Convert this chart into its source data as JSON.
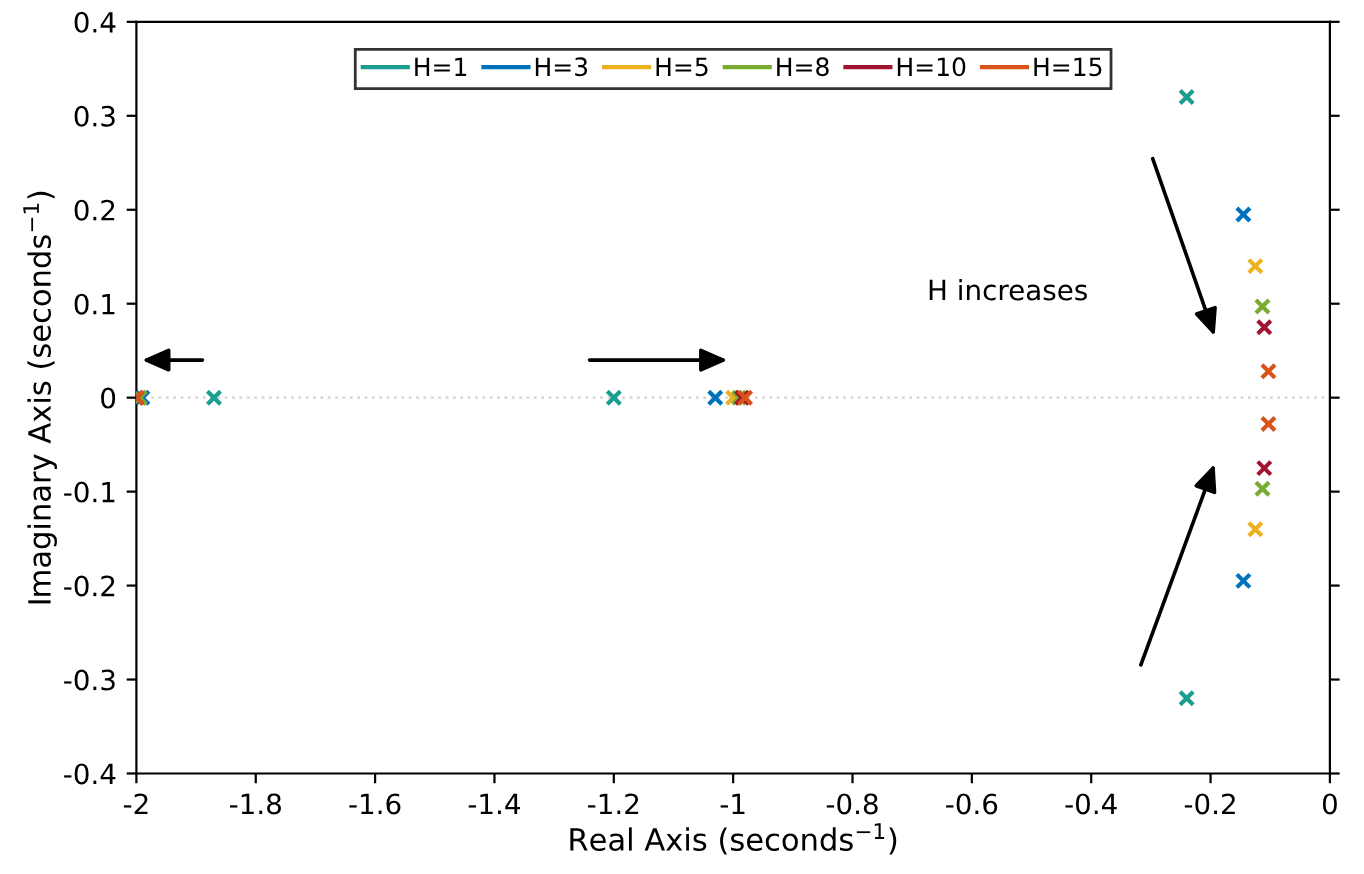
{
  "chart_data": {
    "type": "scatter",
    "xlabel": "Real Axis (seconds$^{−1}$)",
    "ylabel": "Imaginary Axis (seconds$^{−1}$)",
    "xlim": [
      -2,
      0
    ],
    "xticks": [
      -2,
      -1.8,
      -1.6,
      -1.4,
      -1.2,
      -1,
      -0.8,
      -0.6,
      -0.4,
      -0.2,
      0
    ],
    "ylim": [
      -0.4,
      0.4
    ],
    "yticks": [
      -0.4,
      -0.3,
      -0.2,
      -0.1,
      0,
      0.1,
      0.2,
      0.3,
      0.4
    ],
    "marker": "cross",
    "legend": "top",
    "grid": false,
    "ref_lines": [
      {
        "axis": "y",
        "value": 0,
        "color": "#d9d9d9",
        "line_style": "dotted"
      }
    ],
    "annotations": [
      "H increases"
    ],
    "series": [
      {
        "name": "H=1",
        "color": "#1a9e8f",
        "x": [
          -1.87,
          -1.2,
          -0.24,
          -0.24
        ],
        "values": [
          0,
          0,
          0.32,
          -0.32
        ]
      },
      {
        "name": "H=3",
        "color": "#0072bd",
        "x": [
          -1.99,
          -1.03,
          -0.145,
          -0.145
        ],
        "values": [
          0,
          0,
          0.195,
          -0.195
        ]
      },
      {
        "name": "H=5",
        "color": "#edb120",
        "x": [
          -1.995,
          -1.0,
          -0.125,
          -0.125
        ],
        "values": [
          0,
          0,
          0.14,
          -0.14
        ]
      },
      {
        "name": "H=8",
        "color": "#77ac30",
        "x": [
          -1.995,
          -0.99,
          -0.113,
          -0.113
        ],
        "values": [
          0,
          0,
          0.097,
          -0.097
        ]
      },
      {
        "name": "H=10",
        "color": "#a2142f",
        "x": [
          -2.0,
          -0.985,
          -0.11,
          -0.11
        ],
        "values": [
          0,
          0,
          0.075,
          -0.075
        ]
      },
      {
        "name": "H=15",
        "color": "#d95319",
        "x": [
          -2.0,
          -0.98,
          -0.103,
          -0.103
        ],
        "values": [
          0,
          0,
          0.028,
          -0.028
        ]
      }
    ]
  }
}
